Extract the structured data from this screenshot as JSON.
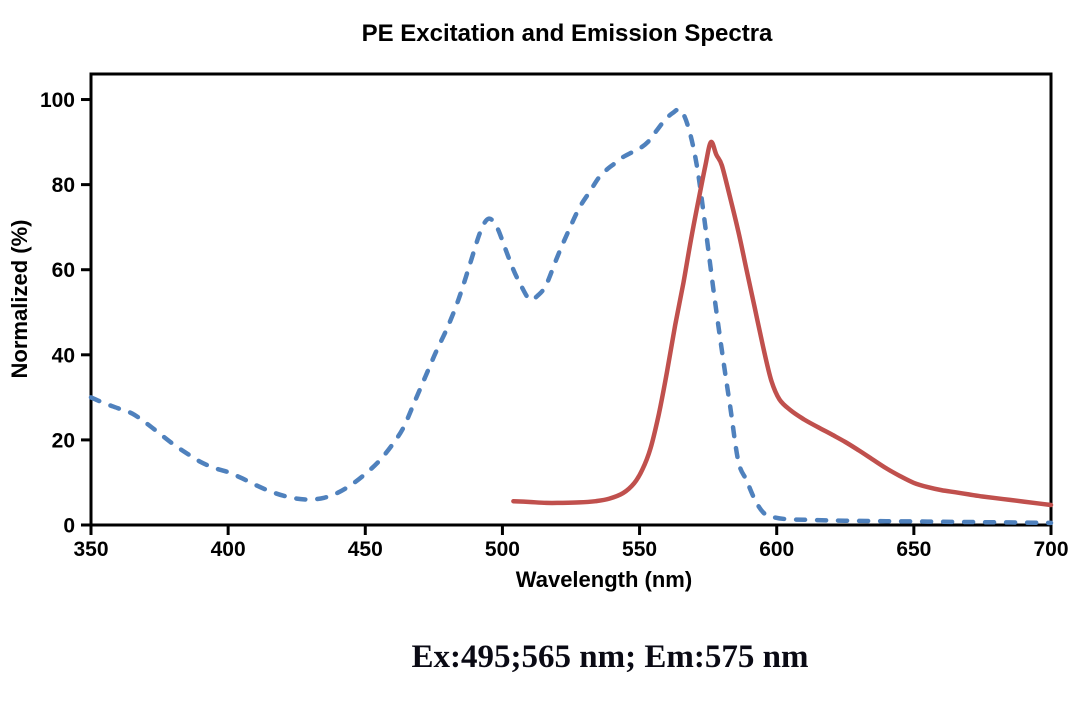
{
  "annotation": "Ex:495;565 nm; Em:575 nm",
  "colors": {
    "excitation_line": "#4F81BD",
    "emission_line": "#C0504D",
    "axis": "#000000",
    "background": "#ffffff"
  },
  "chart_data": {
    "type": "line",
    "title": "PE Excitation and Emission Spectra",
    "xlabel": "Wavelength (nm)",
    "ylabel": "Normalized (%)",
    "xlim": [
      350,
      700
    ],
    "ylim": [
      0,
      106
    ],
    "x_ticks": [
      350,
      400,
      450,
      500,
      550,
      600,
      650,
      700
    ],
    "y_ticks": [
      0,
      20,
      40,
      60,
      80,
      100
    ],
    "grid": false,
    "legend_position": "none",
    "series": [
      {
        "name": "Excitation",
        "style": "dashed",
        "color": "#4F81BD",
        "points": [
          [
            350,
            30
          ],
          [
            355,
            28.6
          ],
          [
            360,
            27.4
          ],
          [
            365,
            26.2
          ],
          [
            370,
            24
          ],
          [
            375,
            21.5
          ],
          [
            380,
            19
          ],
          [
            385,
            16.8
          ],
          [
            390,
            14.8
          ],
          [
            395,
            13.4
          ],
          [
            400,
            12.4
          ],
          [
            405,
            11
          ],
          [
            410,
            9.4
          ],
          [
            415,
            8
          ],
          [
            420,
            6.9
          ],
          [
            425,
            6.2
          ],
          [
            430,
            6
          ],
          [
            435,
            6.4
          ],
          [
            440,
            7.6
          ],
          [
            445,
            9.5
          ],
          [
            450,
            12
          ],
          [
            455,
            15
          ],
          [
            460,
            19
          ],
          [
            464,
            23
          ],
          [
            468,
            29
          ],
          [
            472,
            35
          ],
          [
            476,
            41
          ],
          [
            480,
            46.5
          ],
          [
            484,
            53
          ],
          [
            488,
            61
          ],
          [
            492,
            69
          ],
          [
            495,
            72
          ],
          [
            498,
            70
          ],
          [
            501,
            65
          ],
          [
            504,
            60
          ],
          [
            507,
            56
          ],
          [
            510,
            53
          ],
          [
            513,
            54
          ],
          [
            516,
            56.5
          ],
          [
            520,
            63
          ],
          [
            524,
            69
          ],
          [
            528,
            74.5
          ],
          [
            532,
            78.5
          ],
          [
            535,
            81.5
          ],
          [
            538,
            83.5
          ],
          [
            541,
            85
          ],
          [
            544,
            86.5
          ],
          [
            547,
            87.5
          ],
          [
            550,
            88.5
          ],
          [
            553,
            90
          ],
          [
            556,
            92.5
          ],
          [
            559,
            95
          ],
          [
            562,
            96.8
          ],
          [
            565,
            97.5
          ],
          [
            568,
            93
          ],
          [
            571,
            84
          ],
          [
            574,
            70
          ],
          [
            577,
            55
          ],
          [
            580,
            41
          ],
          [
            583,
            28
          ],
          [
            586,
            15
          ],
          [
            589,
            10.5
          ],
          [
            592,
            6
          ],
          [
            595,
            3
          ],
          [
            598,
            2
          ],
          [
            603,
            1.4
          ],
          [
            612,
            1.2
          ],
          [
            625,
            1
          ],
          [
            640,
            0.9
          ],
          [
            655,
            0.8
          ],
          [
            670,
            0.7
          ],
          [
            685,
            0.6
          ],
          [
            700,
            0.5
          ]
        ]
      },
      {
        "name": "Emission",
        "style": "solid",
        "color": "#C0504D",
        "points": [
          [
            504,
            5.6
          ],
          [
            510,
            5.4
          ],
          [
            516,
            5.2
          ],
          [
            522,
            5.2
          ],
          [
            528,
            5.3
          ],
          [
            534,
            5.6
          ],
          [
            539,
            6.2
          ],
          [
            544,
            7.5
          ],
          [
            548,
            9.8
          ],
          [
            551,
            13
          ],
          [
            554,
            18
          ],
          [
            557,
            26
          ],
          [
            560,
            36
          ],
          [
            563,
            47
          ],
          [
            566,
            57
          ],
          [
            569,
            68
          ],
          [
            572,
            78
          ],
          [
            574,
            84.5
          ],
          [
            576,
            90
          ],
          [
            578,
            87
          ],
          [
            580,
            84.5
          ],
          [
            583,
            77
          ],
          [
            586,
            69
          ],
          [
            589,
            60
          ],
          [
            592,
            51
          ],
          [
            595,
            42
          ],
          [
            598,
            34
          ],
          [
            601,
            29.5
          ],
          [
            605,
            27
          ],
          [
            610,
            24.8
          ],
          [
            615,
            23
          ],
          [
            620,
            21.3
          ],
          [
            625,
            19.5
          ],
          [
            630,
            17.5
          ],
          [
            635,
            15.4
          ],
          [
            640,
            13.3
          ],
          [
            645,
            11.5
          ],
          [
            650,
            9.9
          ],
          [
            655,
            8.9
          ],
          [
            660,
            8.2
          ],
          [
            665,
            7.7
          ],
          [
            670,
            7.2
          ],
          [
            675,
            6.7
          ],
          [
            680,
            6.3
          ],
          [
            685,
            5.9
          ],
          [
            690,
            5.5
          ],
          [
            695,
            5.1
          ],
          [
            700,
            4.7
          ]
        ]
      }
    ]
  }
}
